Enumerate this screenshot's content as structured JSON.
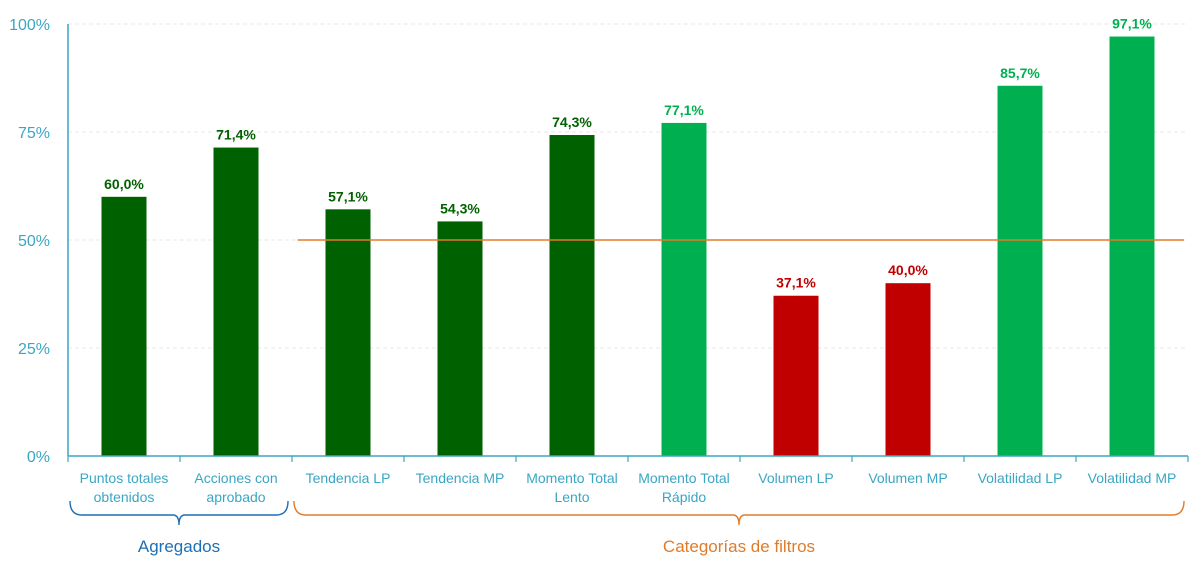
{
  "chart_data": {
    "type": "bar",
    "title": "",
    "xlabel": "",
    "ylabel": "",
    "ylim": [
      0,
      100
    ],
    "yticks": [
      "0%",
      "25%",
      "50%",
      "75%",
      "100%"
    ],
    "ytick_values": [
      0,
      25,
      50,
      75,
      100
    ],
    "grid": true,
    "categories": [
      [
        "Puntos totales",
        "obtenidos"
      ],
      [
        "Acciones con",
        "aprobado"
      ],
      [
        "Tendencia LP"
      ],
      [
        "Tendencia MP"
      ],
      [
        "Momento Total",
        "Lento"
      ],
      [
        "Momento Total",
        "Rápido"
      ],
      [
        "Volumen LP"
      ],
      [
        "Volumen MP"
      ],
      [
        "Volatilidad LP"
      ],
      [
        "Volatilidad MP"
      ]
    ],
    "values": [
      60.0,
      71.4,
      57.1,
      54.3,
      74.3,
      77.1,
      37.1,
      40.0,
      85.7,
      97.1
    ],
    "data_labels": [
      "60,0%",
      "71,4%",
      "57,1%",
      "54,3%",
      "74,3%",
      "77,1%",
      "37,1%",
      "40,0%",
      "85,7%",
      "97,1%"
    ],
    "bar_colors": [
      "#006100",
      "#006100",
      "#006100",
      "#006100",
      "#006100",
      "#00b050",
      "#c00000",
      "#c00000",
      "#00b050",
      "#00b050"
    ],
    "reference_line": {
      "value": 50,
      "color": "#e07b2a",
      "from_category": 2
    },
    "groups": [
      {
        "label": "Agregados",
        "from": 0,
        "to": 1,
        "color": "#1f6fb5"
      },
      {
        "label": "Categorías de filtros",
        "from": 2,
        "to": 9,
        "color": "#e07b2a"
      }
    ],
    "colors": {
      "axis": "#3aa6c4",
      "grid": "#e8e8e8"
    }
  }
}
